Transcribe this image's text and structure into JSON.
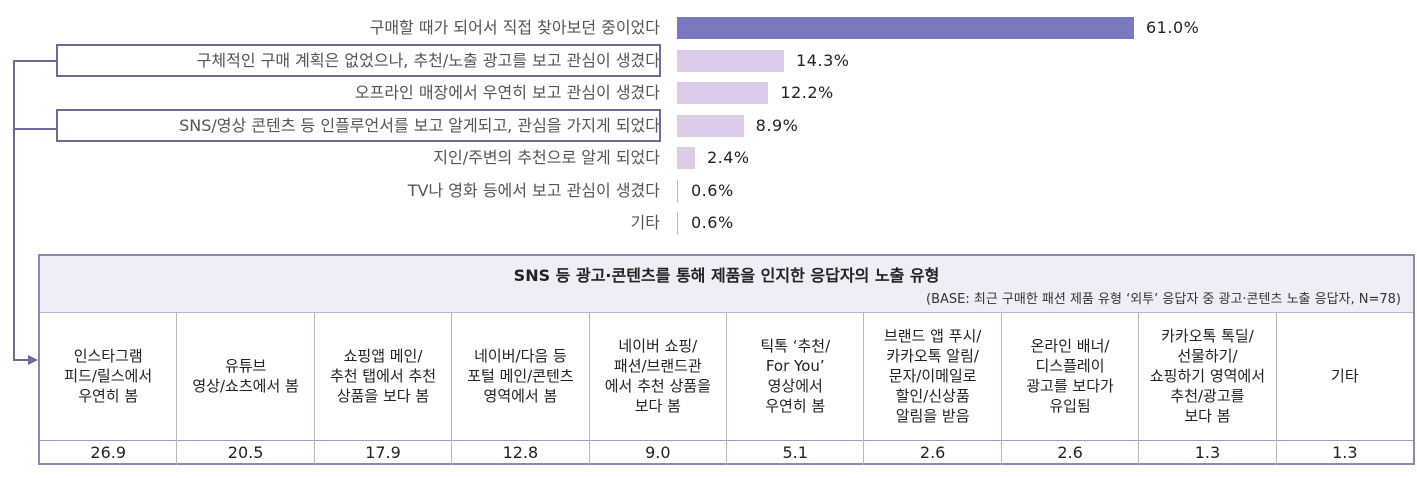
{
  "colors": {
    "primary_bar": "#7b78bf",
    "secondary_bar": "#ddc9e8",
    "box_border": "#6e6a9e",
    "table_header_bg": "#f1edf6"
  },
  "chart_data": {
    "type": "bar",
    "orientation": "horizontal",
    "categories": [
      "구매할 때가 되어서 직접 찾아보던 중이었다",
      "구체적인 구매 계획은 없었으나, 추천/노출 광고를 보고 관심이 생겼다",
      "오프라인 매장에서 우연히 보고 관심이 생겼다",
      "SNS/영상 콘텐츠 등 인플루언서를 보고 알게되고, 관심을 가지게 되었다",
      "지인/주변의 추천으로 알게 되었다",
      "TV나 영화 등에서 보고 관심이 생겼다",
      "기타"
    ],
    "values": [
      61.0,
      14.3,
      12.2,
      8.9,
      2.4,
      0.6,
      0.6
    ],
    "value_labels": [
      "61.0%",
      "14.3%",
      "12.2%",
      "8.9%",
      "2.4%",
      "0.6%",
      "0.6%"
    ],
    "highlighted": [
      1,
      3
    ],
    "xlim": [
      0,
      100
    ],
    "grid": false
  },
  "table": {
    "title": "SNS 등 광고·콘텐츠를 통해 제품을 인지한 응답자의 노출 유형",
    "base": "(BASE: 최근 구매한 패션 제품 유형 ‘외투’ 응답자 중 광고·콘텐츠 노출 응답자, N=78)",
    "columns": [
      "인스타그램\n피드/릴스에서\n우연히 봄",
      "유튜브\n영상/쇼츠에서 봄",
      "쇼핑앱 메인/\n추천 탭에서 추천\n상품을 보다 봄",
      "네이버/다음 등\n포털 메인/콘텐츠\n영역에서 봄",
      "네이버 쇼핑/\n패션/브랜드관\n에서 추천 상품을\n보다 봄",
      "틱톡 ‘추천/\nFor You’\n영상에서\n우연히 봄",
      "브랜드 앱 푸시/\n카카오톡 알림/\n문자/이메일로\n할인/신상품\n알림을 받음",
      "온라인 배너/\n디스플레이\n광고를 보다가\n유입됨",
      "카카오톡 톡딜/\n선물하기/\n쇼핑하기 영역에서\n추천/광고를\n보다 봄",
      "기타"
    ],
    "values": [
      "26.9",
      "20.5",
      "17.9",
      "12.8",
      "9.0",
      "5.1",
      "2.6",
      "2.6",
      "1.3",
      "1.3"
    ]
  }
}
